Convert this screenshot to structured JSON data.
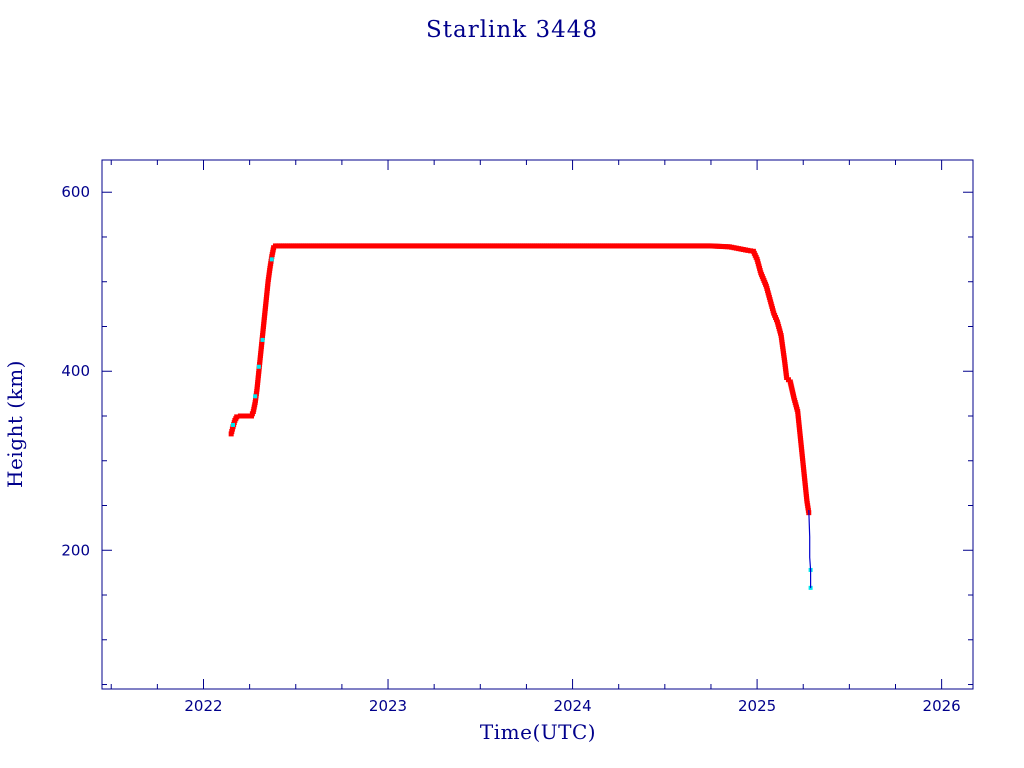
{
  "chart_data": {
    "type": "scatter",
    "title": "Starlink 3448",
    "xlabel": "Time(UTC)",
    "ylabel": "Height (km)",
    "xlim": [
      2021.45,
      2026.17
    ],
    "ylim": [
      45,
      636
    ],
    "x_ticks": [
      2022,
      2023,
      2024,
      2025,
      2026
    ],
    "x_tick_labels": [
      "2022",
      "2023",
      "2024",
      "2025",
      "2026"
    ],
    "y_ticks": [
      200,
      400,
      600
    ],
    "y_tick_labels": [
      "200",
      "400",
      "600"
    ],
    "x_minor_step": 0.25,
    "y_minor_step": 50,
    "grid": false,
    "legend": "none",
    "colors": {
      "axis": "#00008b",
      "text": "#00008b",
      "points": "#ff0000",
      "points_alt": "#00e5ee",
      "line": "#0000cd"
    },
    "series": [
      {
        "style": "red-markers",
        "points": [
          [
            2022.15,
            330
          ],
          [
            2022.16,
            338
          ],
          [
            2022.17,
            345
          ],
          [
            2022.18,
            349
          ],
          [
            2022.2,
            350
          ],
          [
            2022.23,
            350
          ],
          [
            2022.26,
            350
          ],
          [
            2022.27,
            355
          ],
          [
            2022.28,
            365
          ],
          [
            2022.29,
            380
          ],
          [
            2022.3,
            400
          ],
          [
            2022.31,
            420
          ],
          [
            2022.32,
            440
          ],
          [
            2022.33,
            460
          ],
          [
            2022.34,
            480
          ],
          [
            2022.35,
            500
          ],
          [
            2022.36,
            515
          ],
          [
            2022.37,
            528
          ],
          [
            2022.38,
            538
          ],
          [
            2022.39,
            540
          ],
          [
            2022.5,
            540
          ],
          [
            2022.75,
            540
          ],
          [
            2023.0,
            540
          ],
          [
            2023.25,
            540
          ],
          [
            2023.5,
            540
          ],
          [
            2023.75,
            540
          ],
          [
            2024.0,
            540
          ],
          [
            2024.25,
            540
          ],
          [
            2024.5,
            540
          ],
          [
            2024.75,
            540
          ],
          [
            2024.85,
            539
          ],
          [
            2024.9,
            537
          ],
          [
            2024.95,
            535
          ],
          [
            2024.98,
            534
          ],
          [
            2025.0,
            525
          ],
          [
            2025.02,
            510
          ],
          [
            2025.05,
            495
          ],
          [
            2025.07,
            480
          ],
          [
            2025.09,
            465
          ],
          [
            2025.11,
            455
          ],
          [
            2025.13,
            440
          ],
          [
            2025.14,
            425
          ],
          [
            2025.15,
            410
          ],
          [
            2025.16,
            393
          ],
          [
            2025.18,
            388
          ],
          [
            2025.2,
            370
          ],
          [
            2025.22,
            355
          ],
          [
            2025.23,
            335
          ],
          [
            2025.24,
            315
          ],
          [
            2025.25,
            295
          ],
          [
            2025.26,
            275
          ],
          [
            2025.27,
            255
          ],
          [
            2025.28,
            242
          ]
        ]
      },
      {
        "style": "cyan-markers",
        "points": [
          [
            2022.16,
            340
          ],
          [
            2022.28,
            372
          ],
          [
            2022.3,
            405
          ],
          [
            2022.32,
            435
          ],
          [
            2022.37,
            525
          ],
          [
            2025.29,
            178
          ],
          [
            2025.29,
            158
          ]
        ]
      },
      {
        "style": "blue-line",
        "points": [
          [
            2025.28,
            245
          ],
          [
            2025.285,
            215
          ],
          [
            2025.285,
            192
          ],
          [
            2025.29,
            178
          ],
          [
            2025.29,
            158
          ]
        ]
      }
    ]
  }
}
